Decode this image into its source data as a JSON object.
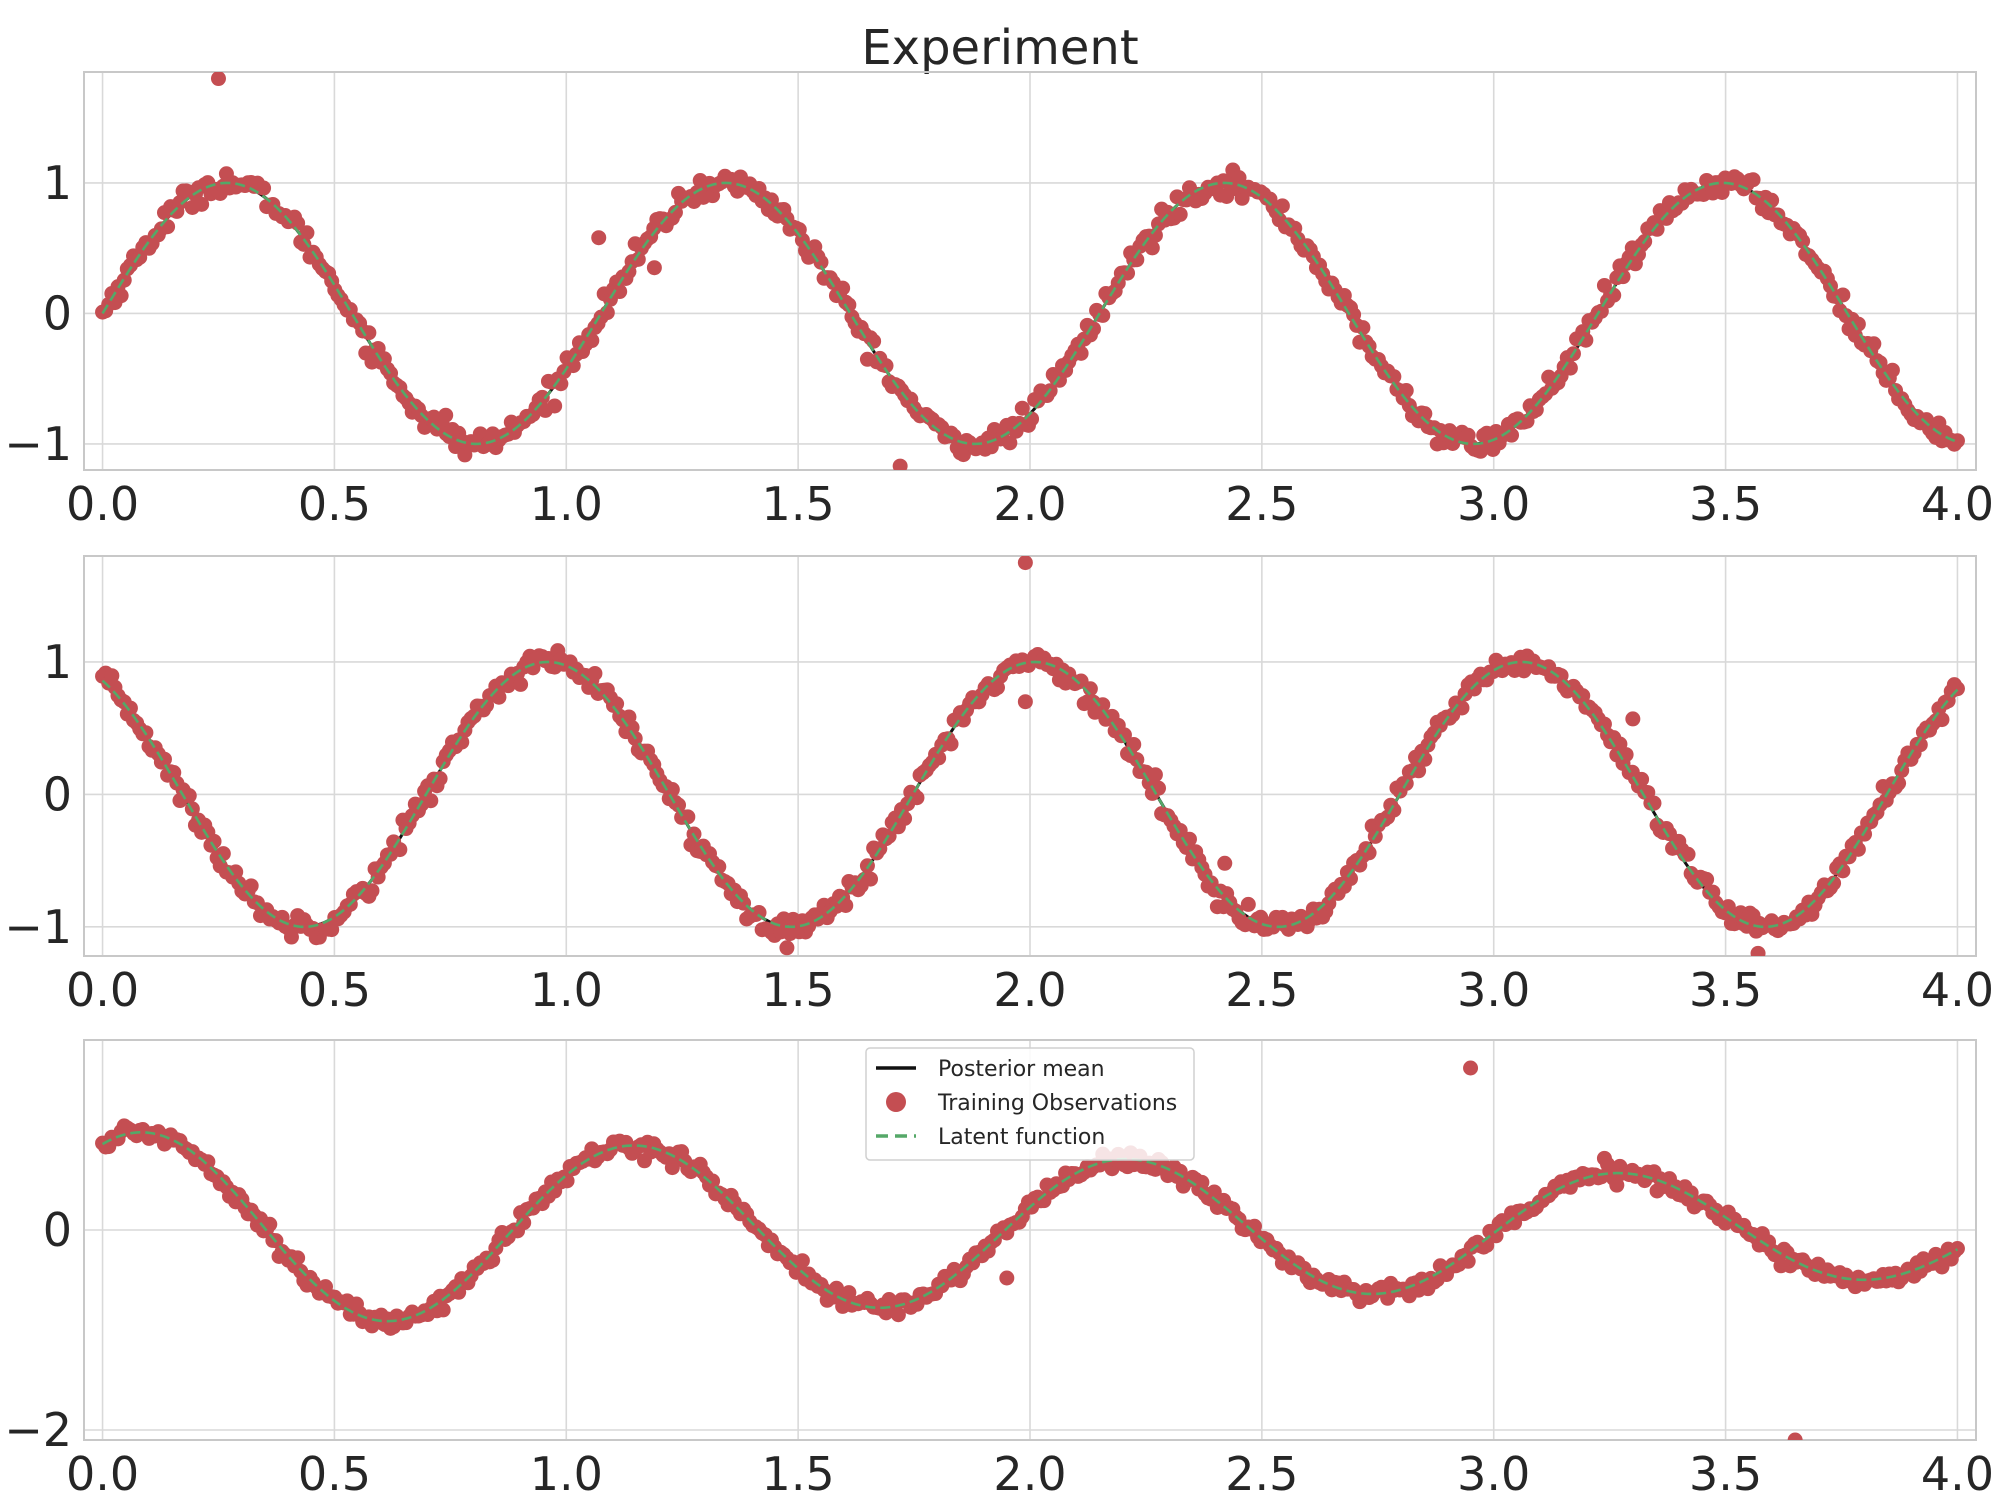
{
  "figure": {
    "title": "Experiment",
    "colors": {
      "grid": "#d9d9d9",
      "axis": "#c8c8c8",
      "text": "#262626",
      "posterior_mean": "#111111",
      "observations": "#c44e52",
      "latent": "#55a868"
    },
    "legend": {
      "placement": "upper-center of third panel",
      "entries": [
        {
          "label": "Posterior mean",
          "style": "solid-line",
          "color": "#111111"
        },
        {
          "label": "Training Observations",
          "style": "marker",
          "color": "#c44e52"
        },
        {
          "label": "Latent function",
          "style": "dashed-line",
          "color": "#55a868"
        }
      ]
    }
  },
  "chart_data": [
    {
      "type": "line+scatter",
      "title": "Experiment",
      "xlabel": "",
      "ylabel": "",
      "xlim": [
        -0.04,
        4.04
      ],
      "ylim": [
        -1.2,
        1.85
      ],
      "xticks": [
        0.0,
        0.5,
        1.0,
        1.5,
        2.0,
        2.5,
        3.0,
        3.5,
        4.0
      ],
      "xtick_labels": [
        "0.0",
        "0.5",
        "1.0",
        "1.5",
        "2.0",
        "2.5",
        "3.0",
        "3.5",
        "4.0"
      ],
      "yticks": [
        -1,
        0,
        1
      ],
      "ytick_labels": [
        "−1",
        "0",
        "1"
      ],
      "grid": true,
      "latent_function": {
        "form": "sin(2*pi*x/1.075)",
        "amplitude": 1.0,
        "period": 1.075,
        "phase": 0.0,
        "offset": 0.0
      },
      "noise_std": 0.045,
      "n_observations": 600,
      "outliers": [
        [
          0.25,
          1.8
        ],
        [
          1.07,
          0.58
        ],
        [
          1.19,
          0.35
        ],
        [
          1.72,
          -1.17
        ],
        [
          0.74,
          -0.78
        ]
      ],
      "series": [
        {
          "name": "Posterior mean"
        },
        {
          "name": "Training Observations"
        },
        {
          "name": "Latent function"
        }
      ]
    },
    {
      "type": "line+scatter",
      "title": "",
      "xlabel": "",
      "ylabel": "",
      "xlim": [
        -0.04,
        4.04
      ],
      "ylim": [
        -1.22,
        1.8
      ],
      "xticks": [
        0.0,
        0.5,
        1.0,
        1.5,
        2.0,
        2.5,
        3.0,
        3.5,
        4.0
      ],
      "xtick_labels": [
        "0.0",
        "0.5",
        "1.0",
        "1.5",
        "2.0",
        "2.5",
        "3.0",
        "3.5",
        "4.0"
      ],
      "yticks": [
        -1,
        0,
        1
      ],
      "ytick_labels": [
        "−1",
        "0",
        "1"
      ],
      "grid": true,
      "latent_function": {
        "form": "cos(2*pi*(x-0.96)/1.05)",
        "amplitude": 1.0,
        "period": 1.05,
        "phase": 0.96,
        "offset": 0.0
      },
      "noise_std": 0.045,
      "n_observations": 600,
      "outliers": [
        [
          1.99,
          1.75
        ],
        [
          1.99,
          0.7
        ],
        [
          2.14,
          0.62
        ],
        [
          3.3,
          0.57
        ],
        [
          2.42,
          -0.52
        ],
        [
          3.57,
          -1.2
        ]
      ],
      "series": [
        {
          "name": "Posterior mean"
        },
        {
          "name": "Training Observations"
        },
        {
          "name": "Latent function"
        }
      ]
    },
    {
      "type": "line+scatter",
      "title": "",
      "xlabel": "",
      "ylabel": "",
      "xlim": [
        -0.04,
        4.04
      ],
      "ylim": [
        -2.1,
        1.9
      ],
      "xticks": [
        0.0,
        0.5,
        1.0,
        1.5,
        2.0,
        2.5,
        3.0,
        3.5,
        4.0
      ],
      "xtick_labels": [
        "0.0",
        "0.5",
        "1.0",
        "1.5",
        "2.0",
        "2.5",
        "3.0",
        "3.5",
        "4.0"
      ],
      "yticks": [
        -2,
        0
      ],
      "ytick_labels": [
        "−2",
        "0"
      ],
      "grid": true,
      "latent_function": {
        "form": "sum of panel 1 and panel 2 curves"
      },
      "noise_std": 0.045,
      "n_observations": 600,
      "outliers": [
        [
          1.95,
          -0.48
        ],
        [
          2.95,
          1.62
        ],
        [
          3.65,
          -2.1
        ]
      ],
      "series": [
        {
          "name": "Posterior mean"
        },
        {
          "name": "Training Observations"
        },
        {
          "name": "Latent function"
        }
      ]
    }
  ]
}
